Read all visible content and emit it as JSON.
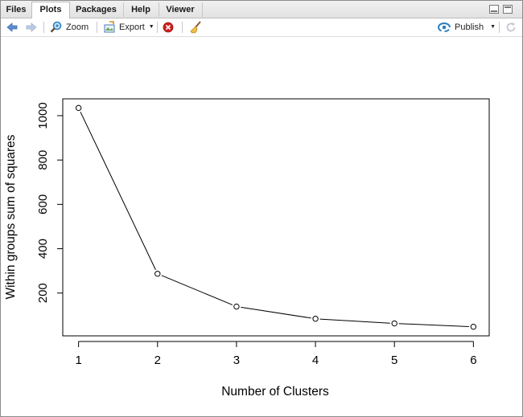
{
  "tabs": [
    {
      "label": "Files",
      "active": false
    },
    {
      "label": "Plots",
      "active": true
    },
    {
      "label": "Packages",
      "active": false
    },
    {
      "label": "Help",
      "active": false
    },
    {
      "label": "Viewer",
      "active": false
    }
  ],
  "toolbar": {
    "zoom_label": "Zoom",
    "export_label": "Export",
    "publish_label": "Publish"
  },
  "colors": {
    "accent": "#2a7fc1",
    "remove": "#d02020",
    "nav_arrow": "#5a8fd0"
  },
  "chart_data": {
    "type": "line",
    "title": "",
    "xlabel": "Number of Clusters",
    "ylabel": "Within groups sum of squares",
    "x": [
      1,
      2,
      3,
      4,
      5,
      6
    ],
    "values": [
      1035,
      287,
      139,
      84,
      63,
      48
    ],
    "xticks": [
      "1",
      "2",
      "3",
      "4",
      "5",
      "6"
    ],
    "yticks": [
      "200",
      "400",
      "600",
      "800",
      "1000"
    ],
    "xlim": [
      0.8,
      6.2
    ],
    "ylim": [
      7,
      1076
    ],
    "markers": "open-circle",
    "grid": false
  }
}
